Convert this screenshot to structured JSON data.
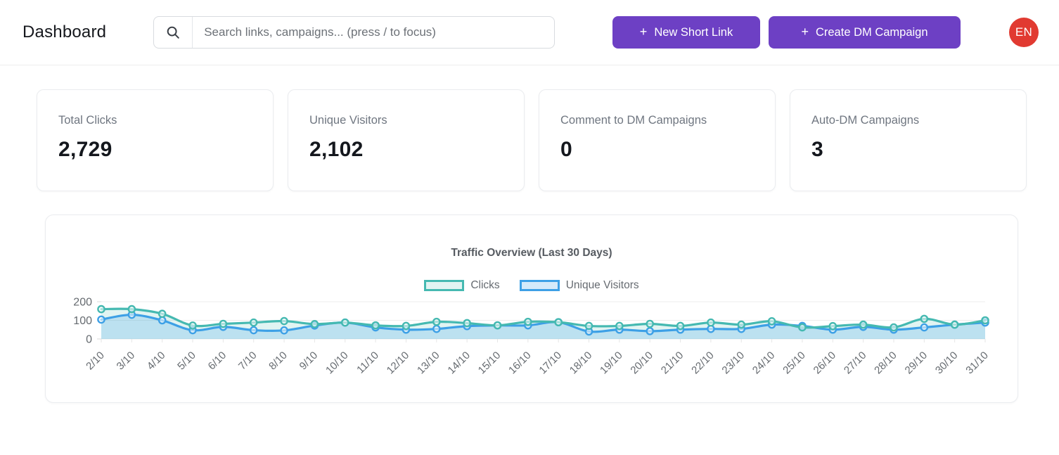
{
  "header": {
    "title": "Dashboard",
    "search": {
      "icon": "search-icon",
      "placeholder": "Search links, campaigns... (press / to focus)"
    },
    "buttons": [
      {
        "plus": "+",
        "label": "New Short Link"
      },
      {
        "plus": "+",
        "label": "Create DM Campaign"
      }
    ],
    "avatar": "EN"
  },
  "colors": {
    "accent_purple": "#6d40c4",
    "avatar_red": "#e13a31",
    "clicks_teal": "#45b9b1",
    "visitors_blue": "#3da0e6",
    "grid": "#ececec",
    "tick_text": "#666b70"
  },
  "stats": [
    {
      "label": "Total Clicks",
      "value": "2,729"
    },
    {
      "label": "Unique Visitors",
      "value": "2,102"
    },
    {
      "label": "Comment to DM Campaigns",
      "value": "0"
    },
    {
      "label": "Auto-DM Campaigns",
      "value": "3"
    }
  ],
  "chart_data": {
    "type": "line",
    "title": "Traffic Overview (Last 30 Days)",
    "legend_position": "top",
    "grid": true,
    "xlabel": "",
    "ylabel": "",
    "ylim": [
      0,
      200
    ],
    "yticks": [
      0,
      100,
      200
    ],
    "categories": [
      "2/10",
      "3/10",
      "4/10",
      "5/10",
      "6/10",
      "7/10",
      "8/10",
      "9/10",
      "10/10",
      "11/10",
      "12/10",
      "13/10",
      "14/10",
      "15/10",
      "16/10",
      "17/10",
      "18/10",
      "19/10",
      "20/10",
      "21/10",
      "22/10",
      "23/10",
      "24/10",
      "25/10",
      "26/10",
      "27/10",
      "28/10",
      "29/10",
      "30/10",
      "31/10"
    ],
    "series": [
      {
        "name": "Clicks",
        "color": "#45b9b1",
        "fill": "rgba(69,185,177,0.16)",
        "values": [
          160,
          160,
          135,
          72,
          81,
          88,
          96,
          80,
          88,
          73,
          70,
          92,
          85,
          73,
          92,
          90,
          70,
          70,
          81,
          70,
          88,
          77,
          95,
          62,
          69,
          77,
          62,
          108,
          77,
          100
        ]
      },
      {
        "name": "Unique Visitors",
        "color": "#3da0e6",
        "fill": "rgba(61,160,230,0.22)",
        "values": [
          104,
          130,
          100,
          47,
          65,
          47,
          46,
          72,
          88,
          62,
          50,
          54,
          69,
          73,
          73,
          90,
          40,
          50,
          42,
          50,
          54,
          54,
          77,
          70,
          50,
          65,
          50,
          62,
          77,
          88
        ]
      }
    ]
  }
}
